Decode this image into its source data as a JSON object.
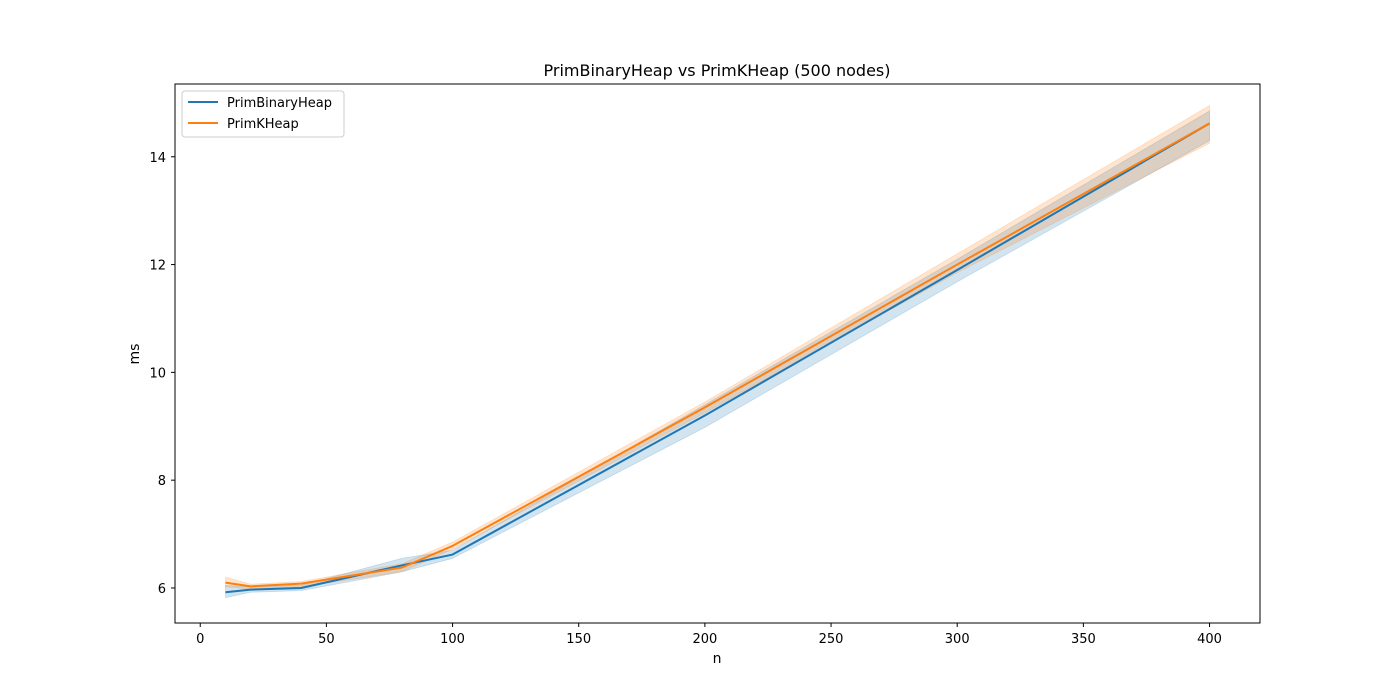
{
  "chart_data": {
    "type": "line",
    "title": "PrimBinaryHeap vs PrimKHeap (500 nodes)",
    "xlabel": "n",
    "ylabel": "ms",
    "xlim": [
      -10,
      420
    ],
    "ylim": [
      5.35,
      15.35
    ],
    "xticks": [
      0,
      50,
      100,
      150,
      200,
      250,
      300,
      350,
      400
    ],
    "yticks": [
      6,
      8,
      10,
      12,
      14
    ],
    "grid": false,
    "legend_position": "top-left",
    "x": [
      10,
      20,
      40,
      80,
      100,
      200,
      300,
      400
    ],
    "series": [
      {
        "name": "PrimBinaryHeap",
        "color": "#1f77b4",
        "values": [
          5.92,
          5.97,
          6.0,
          6.42,
          6.62,
          9.2,
          11.9,
          14.62
        ],
        "lower": [
          5.82,
          5.92,
          5.95,
          6.3,
          6.55,
          8.98,
          11.68,
          14.3
        ],
        "upper": [
          6.05,
          6.02,
          6.05,
          6.55,
          6.7,
          9.4,
          12.1,
          14.85
        ]
      },
      {
        "name": "PrimKHeap",
        "color": "#ff7f0e",
        "values": [
          6.1,
          6.03,
          6.08,
          6.38,
          6.78,
          9.35,
          12.0,
          14.62
        ],
        "lower": [
          6.02,
          5.98,
          6.02,
          6.3,
          6.72,
          9.25,
          11.85,
          14.25
        ],
        "upper": [
          6.2,
          6.07,
          6.12,
          6.45,
          6.85,
          9.45,
          12.2,
          14.95
        ]
      }
    ]
  }
}
